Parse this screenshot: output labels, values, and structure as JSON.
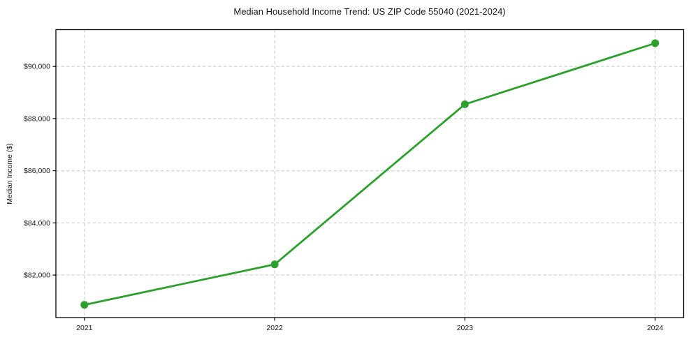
{
  "chart_data": {
    "type": "line",
    "title": "Median Household Income Trend: US ZIP Code 55040 (2021-2024)",
    "xlabel": "",
    "ylabel": "Median Income ($)",
    "x": [
      2021,
      2022,
      2023,
      2024
    ],
    "x_tick_labels": [
      "2021",
      "2022",
      "2023",
      "2024"
    ],
    "values": [
      80860,
      82410,
      88550,
      90890
    ],
    "series_name": "Median Household Income",
    "y_ticks": [
      82000,
      84000,
      86000,
      88000,
      90000
    ],
    "y_tick_labels": [
      "$82,000",
      "$84,000",
      "$86,000",
      "$88,000",
      "$90,000"
    ],
    "xlim": [
      2020.85,
      2024.15
    ],
    "ylim": [
      80370,
      91410
    ],
    "grid": "both-dashed",
    "legend": "none",
    "line_color": "#2ca02c",
    "marker": "circle",
    "marker_color": "#2ca02c",
    "grid_color": "#c9c9c9",
    "spine_color": "#000000",
    "background_color": "#ffffff"
  }
}
